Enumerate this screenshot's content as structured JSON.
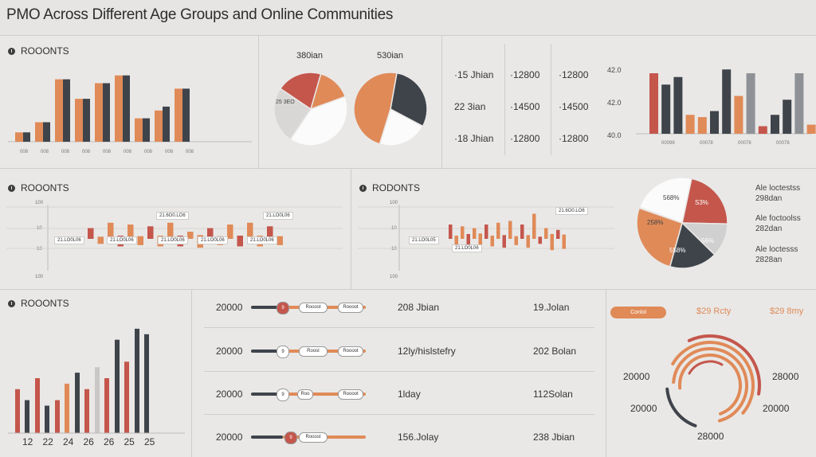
{
  "title": "PMO Across Different Age Groups and Online Communities",
  "colors": {
    "red": "#c4564c",
    "orange": "#e08a58",
    "dark": "#3f444b",
    "gray": "#8e9196",
    "light": "#c9c8c6",
    "white": "#fbfbfb"
  },
  "panels": {
    "p1": {
      "title": "ROOONTS",
      "ticks": [
        "008",
        "008",
        "008",
        "008",
        "008",
        "008",
        "008",
        "008",
        "008"
      ]
    },
    "p2": {
      "labels": [
        "380ian",
        "530ian"
      ],
      "inner_label": "25 3EO"
    },
    "p3": {
      "rows": [
        [
          "·15 Jhian",
          "·12800",
          "·12800"
        ],
        [
          "22 3ian",
          "·14500",
          "·14500"
        ],
        [
          "·18 Jhian",
          "·12800",
          "·12800"
        ]
      ]
    },
    "p4": {
      "yticks": [
        "42.0",
        "42.0",
        "40.0"
      ],
      "xticks": [
        "00098",
        "00078",
        "00078",
        "00078"
      ]
    },
    "p5": {
      "title": "ROOONTS",
      "tags": [
        "21.6O0.LO6",
        "21.LO0L06",
        "21.LO0L06",
        "21.LO0L06",
        "21.LO0L06"
      ],
      "yticks": [
        "100",
        "10",
        "10",
        "100"
      ]
    },
    "p6": {
      "title": "RODONTS",
      "tags": [
        "21.6O0.LO6",
        "21.LO0L05",
        "21.LO0L06"
      ],
      "yticks": [
        "100",
        "10",
        "10",
        "100"
      ]
    },
    "p7": {
      "slices": [
        "568%",
        "S3%",
        "258%",
        "56%",
        "558%"
      ],
      "legend": [
        [
          "Ale loctestss",
          "298dan"
        ],
        [
          "Ale foctoolss",
          "282dan"
        ],
        [
          "Ale loctesss",
          "2828an"
        ]
      ]
    },
    "p8": {
      "title": "ROOONTS",
      "xticks": [
        "12",
        "22",
        "24",
        "26",
        "26",
        "25",
        "25"
      ]
    },
    "p9": {
      "rows": [
        {
          "label": "20000",
          "k1": "9",
          "k2": "Rooost",
          "k3": "Roooot",
          "mid": "208 Jbian",
          "right": "19.Jolan"
        },
        {
          "label": "20000",
          "k1": "9",
          "k2": "Roost",
          "k3": "Roooot",
          "mid": "12ly/hislstefry",
          "right": "202 Bolan"
        },
        {
          "label": "20000",
          "k1": "9",
          "k2": "Roo",
          "k3": "Roooot",
          "mid": "1lday",
          "right": "112Solan"
        },
        {
          "label": "20000",
          "k1": "9",
          "k2": "Rooost",
          "mid": "156.Jolay",
          "right": "238 Jbian"
        }
      ]
    },
    "p10": {
      "pill": "Conlol",
      "head1": "$29 Rcty",
      "head2": "$29 8my",
      "left1": "20000",
      "left2": "20000",
      "right1": "28000",
      "right2": "20000",
      "bottom": "28000"
    }
  },
  "chart_data": [
    {
      "type": "bar",
      "title": "ROOONTS",
      "series": [
        {
          "name": "orange",
          "values": [
            12,
            25,
            80,
            55,
            75,
            85,
            30,
            40,
            68
          ]
        },
        {
          "name": "dark",
          "values": [
            12,
            25,
            80,
            55,
            75,
            85,
            30,
            45,
            68
          ]
        }
      ]
    },
    {
      "type": "pie",
      "slices": [
        {
          "label": "25 3EO",
          "value": 40
        },
        {
          "value": 25
        },
        {
          "value": 20
        },
        {
          "value": 15
        }
      ]
    },
    {
      "type": "pie",
      "slices": [
        {
          "value": 55
        },
        {
          "value": 45
        }
      ]
    },
    {
      "type": "bar",
      "xticks": [
        "00098",
        "00078",
        "00078",
        "00078"
      ],
      "values": [
        80,
        65,
        75,
        25,
        22,
        30,
        85,
        50,
        80,
        10,
        25,
        45,
        80,
        12
      ]
    },
    {
      "type": "bar",
      "title": "ROOONTS",
      "values": [
        30,
        20,
        45,
        30,
        40,
        25,
        35,
        30,
        45,
        30,
        20,
        35,
        30,
        25,
        40,
        30,
        45,
        30,
        35,
        25
      ]
    },
    {
      "type": "bar",
      "title": "RODONTS",
      "values": [
        40,
        30,
        35,
        45,
        30,
        50,
        40,
        30,
        45,
        35,
        50,
        25,
        40,
        35,
        70,
        20,
        30,
        45,
        25,
        40
      ]
    },
    {
      "type": "pie",
      "slices": [
        {
          "label": "568%",
          "value": 15
        },
        {
          "label": "S3%",
          "value": 22
        },
        {
          "label": "258%",
          "value": 12
        },
        {
          "label": "56%",
          "value": 18
        },
        {
          "label": "558%",
          "value": 33
        }
      ]
    },
    {
      "type": "bar",
      "title": "ROOONTS",
      "xticks": [
        "12",
        "22",
        "24",
        "26",
        "26",
        "25",
        "25"
      ],
      "values": [
        40,
        30,
        50,
        25,
        30,
        45,
        55,
        40,
        60,
        50,
        85,
        65,
        95,
        90
      ]
    }
  ]
}
